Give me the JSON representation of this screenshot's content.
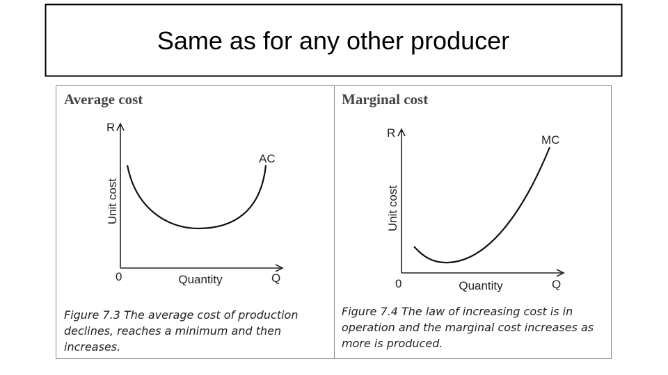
{
  "title": "Same as for any other producer",
  "panels": [
    {
      "heading": "Average cost",
      "y_axis_top": "R",
      "y_axis_label": "Unit cost",
      "origin": "0",
      "x_axis_label": "Quantity",
      "x_axis_end": "Q",
      "curve_label": "AC",
      "caption": [
        "Figure 7.3 The average cost of production",
        "declines, reaches a minimum and then",
        "increases."
      ]
    },
    {
      "heading": "Marginal cost",
      "y_axis_top": "R",
      "y_axis_label": "Unit cost",
      "origin": "0",
      "x_axis_label": "Quantity",
      "x_axis_end": "Q",
      "curve_label": "MC",
      "caption": [
        "Figure 7.4 The law of increasing cost is in",
        "operation and the marginal cost increases as",
        "more is produced."
      ]
    }
  ]
}
